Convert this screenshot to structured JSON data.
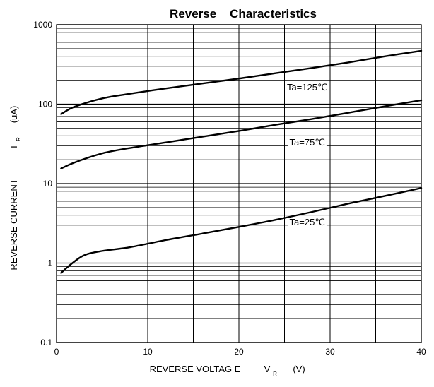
{
  "chart_data": {
    "type": "line",
    "title": "Reverse    Characteristics",
    "xlabel": {
      "main": "REVERSE VOLTAG E",
      "symbol": "V",
      "subscript": "R",
      "unit": "(V)"
    },
    "ylabel": {
      "main": "REVERSE CURRENT",
      "symbol": "I",
      "subscript": "R",
      "unit": "(uA)"
    },
    "xlim": [
      0,
      40
    ],
    "ylim": [
      0.1,
      1000
    ],
    "yscale": "log",
    "grid": true,
    "xticks": [
      0,
      10,
      20,
      30,
      40
    ],
    "xtick_labels": [
      "0",
      "10",
      "20",
      "30",
      "40"
    ],
    "yticks": [
      0.1,
      1,
      10,
      100,
      1000
    ],
    "ytick_labels": [
      "0.1",
      "1",
      "10",
      "100",
      "1000"
    ],
    "series": [
      {
        "name": "Ta=125℃",
        "x": [
          0.5,
          2,
          5,
          8,
          12,
          16,
          20,
          24,
          28,
          32,
          36,
          40
        ],
        "y": [
          75,
          93,
          118,
          135,
          158,
          182,
          210,
          245,
          285,
          335,
          400,
          470
        ]
      },
      {
        "name": "Ta=75℃",
        "x": [
          0.5,
          2,
          5,
          8,
          12,
          16,
          20,
          24,
          28,
          32,
          36,
          40
        ],
        "y": [
          15.5,
          18.5,
          24,
          28,
          33,
          39,
          46,
          55,
          65,
          78,
          94,
          112
        ]
      },
      {
        "name": "Ta=25℃",
        "x": [
          0.5,
          1.5,
          3,
          5,
          8,
          12,
          16,
          20,
          24,
          28,
          32,
          36,
          40
        ],
        "y": [
          0.75,
          0.95,
          1.25,
          1.42,
          1.58,
          1.95,
          2.35,
          2.85,
          3.5,
          4.4,
          5.6,
          7.0,
          8.8
        ]
      }
    ],
    "annotations": [
      {
        "text": "Ta=125℃",
        "x": 27.5,
        "y": 160
      },
      {
        "text": "Ta=75℃",
        "x": 27.5,
        "y": 32.5
      },
      {
        "text": "Ta=25℃",
        "x": 27.5,
        "y": 3.2
      }
    ]
  }
}
